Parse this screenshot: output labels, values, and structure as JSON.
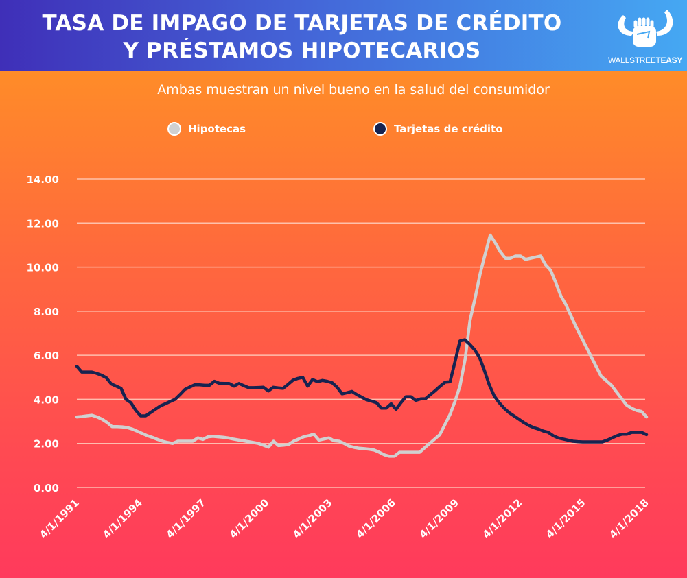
{
  "header": {
    "title_line1": "TASA DE IMPAGO DE TARJETAS DE CRÉDITO",
    "title_line2": "Y PRÉSTAMOS HIPOTECARIOS",
    "logo_text_light": "WALLSTREET",
    "logo_text_bold": "EASY",
    "logo_icon": "bull-horns-fist-icon"
  },
  "colors": {
    "hipotecas": "#d0d0d0",
    "tarjetas": "#172350",
    "grid": "#ffd0c0",
    "text": "#ffffff"
  },
  "chart_data": {
    "type": "line",
    "title": "TASA DE IMPAGO DE TARJETAS DE CRÉDITO Y PRÉSTAMOS HIPOTECARIOS",
    "subtitle": "Ambas muestran un nivel bueno en la salud del consumidor",
    "xlabel": "",
    "ylabel": "",
    "ylim": [
      0,
      14
    ],
    "yticks": [
      "0.00",
      "2.00",
      "4.00",
      "6.00",
      "8.00",
      "10.00",
      "12.00",
      "14.00"
    ],
    "ytick_values": [
      0,
      2,
      4,
      6,
      8,
      10,
      12,
      14
    ],
    "xticks": [
      "4/1/1991",
      "4/1/1994",
      "4/1/1997",
      "4/1/2000",
      "4/1/2003",
      "4/1/2006",
      "4/1/2009",
      "4/1/2012",
      "4/1/2015",
      "4/1/2018"
    ],
    "xtick_years": [
      1991.25,
      1994.25,
      1997.25,
      2000.25,
      2003.25,
      2006.25,
      2009.25,
      2012.25,
      2015.25,
      2018.25
    ],
    "xlim": [
      1991.25,
      2018.25
    ],
    "grid": true,
    "legend": "top-center",
    "x_start": 1991.25,
    "x_step": 0.25,
    "series": [
      {
        "name": "Hipotecas",
        "color": "#d0d0d0",
        "values": [
          3.2,
          3.22,
          3.25,
          3.28,
          3.2,
          3.1,
          2.95,
          2.76,
          2.76,
          2.75,
          2.72,
          2.65,
          2.55,
          2.45,
          2.35,
          2.27,
          2.18,
          2.1,
          2.04,
          2.0,
          2.1,
          2.1,
          2.1,
          2.1,
          2.25,
          2.18,
          2.3,
          2.32,
          2.3,
          2.28,
          2.25,
          2.2,
          2.16,
          2.12,
          2.08,
          2.04,
          2.0,
          1.92,
          1.83,
          2.1,
          1.9,
          1.92,
          1.95,
          2.1,
          2.2,
          2.3,
          2.35,
          2.42,
          2.15,
          2.2,
          2.25,
          2.12,
          2.1,
          2.0,
          1.88,
          1.82,
          1.78,
          1.76,
          1.74,
          1.7,
          1.6,
          1.48,
          1.42,
          1.42,
          1.6,
          1.6,
          1.6,
          1.6,
          1.6,
          1.8,
          2.0,
          2.2,
          2.4,
          2.85,
          3.3,
          3.9,
          4.6,
          5.8,
          7.6,
          8.6,
          9.7,
          10.6,
          11.45,
          11.1,
          10.7,
          10.4,
          10.4,
          10.5,
          10.5,
          10.35,
          10.4,
          10.45,
          10.5,
          10.1,
          9.85,
          9.3,
          8.7,
          8.3,
          7.8,
          7.3,
          6.85,
          6.4,
          5.95,
          5.5,
          5.05,
          4.85,
          4.65,
          4.35,
          4.05,
          3.75,
          3.6,
          3.5,
          3.45,
          3.2
        ]
      },
      {
        "name": "Tarjetas de crédito",
        "color": "#172350",
        "values": [
          5.5,
          5.24,
          5.24,
          5.24,
          5.18,
          5.1,
          4.98,
          4.7,
          4.6,
          4.5,
          4.0,
          3.85,
          3.5,
          3.25,
          3.25,
          3.4,
          3.55,
          3.7,
          3.8,
          3.9,
          4.0,
          4.22,
          4.45,
          4.56,
          4.66,
          4.66,
          4.64,
          4.64,
          4.82,
          4.73,
          4.72,
          4.72,
          4.6,
          4.72,
          4.62,
          4.53,
          4.53,
          4.54,
          4.55,
          4.38,
          4.55,
          4.52,
          4.5,
          4.68,
          4.87,
          4.95,
          5.0,
          4.6,
          4.9,
          4.8,
          4.86,
          4.82,
          4.75,
          4.55,
          4.25,
          4.3,
          4.36,
          4.22,
          4.1,
          3.98,
          3.92,
          3.85,
          3.6,
          3.6,
          3.8,
          3.55,
          3.85,
          4.12,
          4.12,
          3.95,
          4.02,
          4.03,
          4.22,
          4.4,
          4.6,
          4.78,
          4.8,
          5.7,
          6.65,
          6.7,
          6.5,
          6.25,
          5.9,
          5.3,
          4.65,
          4.15,
          3.85,
          3.6,
          3.4,
          3.25,
          3.1,
          2.95,
          2.82,
          2.72,
          2.65,
          2.56,
          2.5,
          2.35,
          2.25,
          2.2,
          2.15,
          2.1,
          2.08,
          2.07,
          2.07,
          2.07,
          2.07,
          2.07,
          2.15,
          2.25,
          2.35,
          2.42,
          2.42,
          2.5,
          2.5,
          2.5,
          2.4
        ]
      }
    ]
  }
}
